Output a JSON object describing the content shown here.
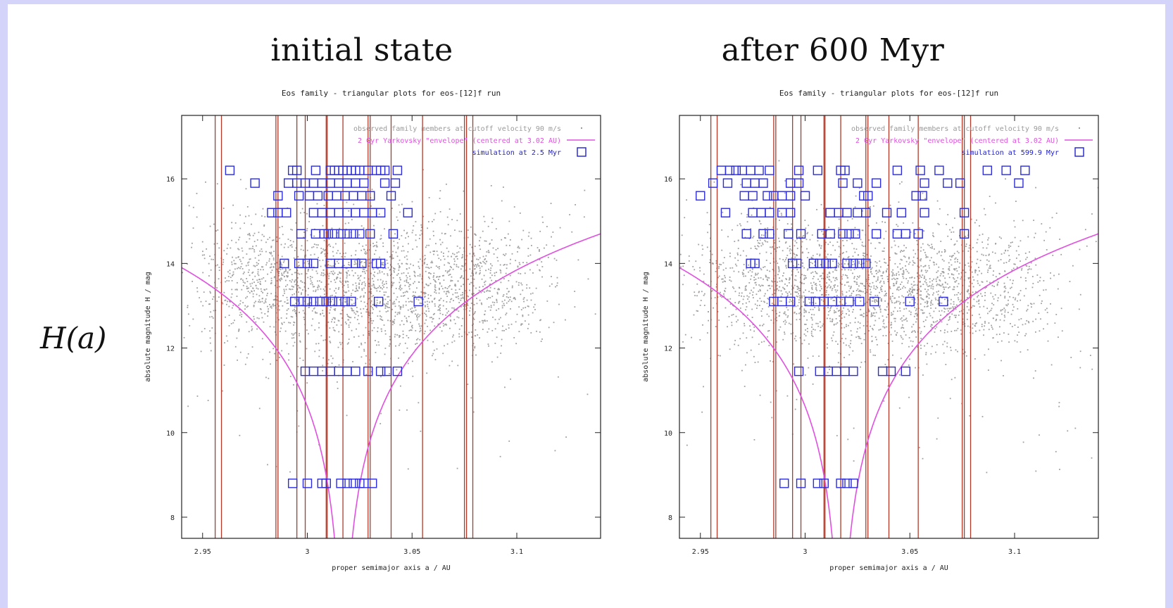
{
  "slide": {
    "row_label": "H(a)",
    "panels": [
      {
        "heading": "initial state"
      },
      {
        "heading": "after 600 Myr"
      }
    ]
  },
  "chart_data": [
    {
      "type": "scatter",
      "title": "Eos family - triangular plots for eos-[12]f run",
      "xlabel": "proper semimajor axis a / AU",
      "ylabel": "absolute magnitude H / mag",
      "xlim": [
        2.94,
        3.14
      ],
      "ylim": [
        7.5,
        17.5
      ],
      "xticks": [
        2.95,
        3,
        3.05,
        3.1
      ],
      "xtick_labels": [
        "2.95",
        "3",
        "3.05",
        "3.1"
      ],
      "yticks": [
        8,
        10,
        12,
        14,
        16
      ],
      "ytick_labels": [
        "8",
        "10",
        "12",
        "14",
        "16"
      ],
      "legend_position": "top-right",
      "grid": false,
      "legend": [
        {
          "label": "observed family members at cutoff velocity 90 m/s",
          "color": "#9a9a9a",
          "marker": "dot"
        },
        {
          "label": "2 Gyr Yarkovsky \"envelope\" (centered at 3.02 AU)",
          "color": "#e050e0",
          "marker": "line"
        },
        {
          "label": "simulation at 2.5 Myr",
          "color": "#2020d0",
          "marker": "square"
        }
      ],
      "resonances_x": [
        2.956,
        2.959,
        2.985,
        2.986,
        2.995,
        2.999,
        3.009,
        3.0095,
        3.017,
        3.029,
        3.03,
        3.04,
        3.055,
        3.075,
        3.076,
        3.079
      ],
      "envelope": {
        "center": 3.017,
        "left_at_2_94": 13.9,
        "right_at_3_14": 14.7
      },
      "observed_members": {
        "n": 2400,
        "cluster_centers": [
          [
            2.985,
            13.6
          ],
          [
            3.03,
            13.3
          ],
          [
            3.075,
            13.4
          ]
        ]
      },
      "simulation_rows": [
        {
          "H": 16.2,
          "x": [
            2.963,
            2.993,
            2.995,
            3.004,
            3.011,
            3.013,
            3.015,
            3.017,
            3.019,
            3.021,
            3.023,
            3.025,
            3.029,
            3.033,
            3.035,
            3.037,
            3.043
          ]
        },
        {
          "H": 15.9,
          "x": [
            2.975,
            2.991,
            2.995,
            2.999,
            3.003,
            3.007,
            3.011,
            3.015,
            3.019,
            3.023,
            3.027,
            3.037,
            3.042
          ]
        },
        {
          "H": 15.6,
          "x": [
            2.986,
            2.996,
            3.001,
            3.005,
            3.01,
            3.014,
            3.018,
            3.022,
            3.026,
            3.03,
            3.04
          ]
        },
        {
          "H": 15.2,
          "x": [
            2.983,
            2.986,
            2.99,
            3.003,
            3.007,
            3.011,
            3.015,
            3.019,
            3.023,
            3.027,
            3.031,
            3.035,
            3.048
          ]
        },
        {
          "H": 14.7,
          "x": [
            2.997,
            3.004,
            3.008,
            3.01,
            3.013,
            3.016,
            3.019,
            3.022,
            3.025,
            3.03,
            3.041
          ]
        },
        {
          "H": 14.0,
          "x": [
            2.989,
            2.996,
            3.0,
            3.003,
            3.011,
            3.015,
            3.019,
            3.023,
            3.026,
            3.033,
            3.035
          ]
        },
        {
          "H": 13.1,
          "x": [
            2.994,
            2.997,
            3.0,
            3.003,
            3.006,
            3.009,
            3.012,
            3.015,
            3.018,
            3.021,
            3.034,
            3.053
          ]
        },
        {
          "H": 11.45,
          "x": [
            2.999,
            3.003,
            3.007,
            3.011,
            3.015,
            3.019,
            3.023,
            3.029,
            3.035,
            3.038,
            3.043
          ]
        },
        {
          "H": 8.8,
          "x": [
            2.993,
            3.0,
            3.007,
            3.009,
            3.016,
            3.019,
            3.022,
            3.025,
            3.027,
            3.031
          ]
        }
      ]
    },
    {
      "type": "scatter",
      "title": "Eos family - triangular plots for eos-[12]f run",
      "xlabel": "proper semimajor axis a / AU",
      "ylabel": "absolute magnitude H / mag",
      "xlim": [
        2.94,
        3.14
      ],
      "ylim": [
        7.5,
        17.5
      ],
      "xticks": [
        2.95,
        3,
        3.05,
        3.1
      ],
      "xtick_labels": [
        "2.95",
        "3",
        "3.05",
        "3.1"
      ],
      "yticks": [
        8,
        10,
        12,
        14,
        16
      ],
      "ytick_labels": [
        "8",
        "10",
        "12",
        "14",
        "16"
      ],
      "legend_position": "top-right",
      "grid": false,
      "legend": [
        {
          "label": "observed family members at cutoff velocity 90 m/s",
          "color": "#9a9a9a",
          "marker": "dot"
        },
        {
          "label": "2 Gyr Yarkovsky \"envelope\" (centered at 3.02 AU)",
          "color": "#e050e0",
          "marker": "line"
        },
        {
          "label": "simulation at 599.9 Myr",
          "color": "#2020d0",
          "marker": "square"
        }
      ],
      "resonances_x": [
        2.955,
        2.958,
        2.985,
        2.986,
        2.994,
        2.998,
        3.009,
        3.0095,
        3.017,
        3.029,
        3.03,
        3.04,
        3.054,
        3.075,
        3.076,
        3.079
      ],
      "envelope": {
        "center": 3.017,
        "left_at_2_94": 13.9,
        "right_at_3_14": 14.7
      },
      "observed_members": {
        "n": 2400,
        "cluster_centers": [
          [
            2.985,
            13.6
          ],
          [
            3.03,
            13.3
          ],
          [
            3.075,
            13.4
          ]
        ]
      },
      "simulation_rows": [
        {
          "H": 16.2,
          "x": [
            2.96,
            2.964,
            2.967,
            2.97,
            2.974,
            2.978,
            2.983,
            2.997,
            3.006,
            3.017,
            3.019,
            3.044,
            3.055,
            3.064,
            3.087,
            3.096,
            3.105
          ]
        },
        {
          "H": 15.9,
          "x": [
            2.956,
            2.963,
            2.972,
            2.976,
            2.98,
            2.993,
            2.997,
            3.018,
            3.025,
            3.034,
            3.057,
            3.068,
            3.074,
            3.102
          ]
        },
        {
          "H": 15.6,
          "x": [
            2.95,
            2.971,
            2.975,
            2.982,
            2.985,
            2.989,
            2.993,
            3.0,
            3.028,
            3.03,
            3.053,
            3.056
          ]
        },
        {
          "H": 15.2,
          "x": [
            2.962,
            2.975,
            2.979,
            2.983,
            2.989,
            2.993,
            3.012,
            3.016,
            3.02,
            3.025,
            3.029,
            3.039,
            3.046,
            3.057,
            3.076
          ]
        },
        {
          "H": 14.7,
          "x": [
            2.972,
            2.98,
            2.983,
            2.992,
            2.998,
            3.008,
            3.012,
            3.018,
            3.021,
            3.024,
            3.034,
            3.044,
            3.048,
            3.054,
            3.076
          ]
        },
        {
          "H": 14.0,
          "x": [
            2.974,
            2.976,
            2.994,
            2.996,
            3.004,
            3.007,
            3.01,
            3.013,
            3.02,
            3.023,
            3.026,
            3.029
          ]
        },
        {
          "H": 13.1,
          "x": [
            2.985,
            2.989,
            2.993,
            3.002,
            3.005,
            3.009,
            3.013,
            3.017,
            3.021,
            3.026,
            3.033,
            3.05,
            3.066
          ]
        },
        {
          "H": 11.45,
          "x": [
            2.997,
            3.007,
            3.011,
            3.015,
            3.019,
            3.023,
            3.037,
            3.041,
            3.048
          ]
        },
        {
          "H": 8.8,
          "x": [
            2.99,
            2.998,
            3.006,
            3.009,
            3.017,
            3.02,
            3.023
          ]
        }
      ]
    }
  ]
}
